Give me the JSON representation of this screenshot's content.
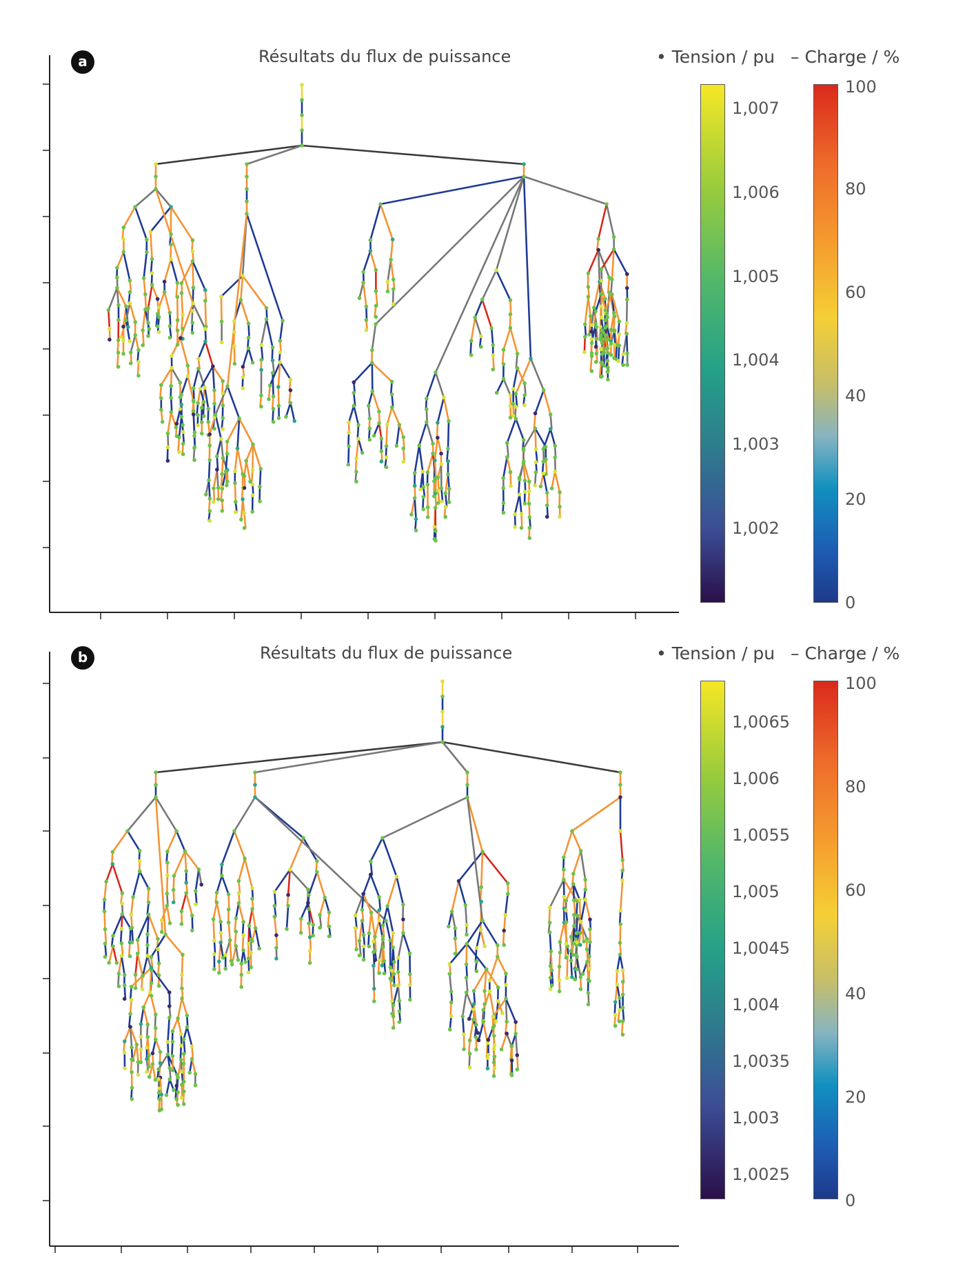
{
  "legend_colors": {
    "voltage_scale": [
      "#2b0f4a",
      "#3b4d96",
      "#2e7c8e",
      "#24a188",
      "#52b76a",
      "#98cc3c",
      "#f6e726"
    ],
    "loading_scale": [
      "#1e3a8a",
      "#1e5cb3",
      "#1190c0",
      "#86b4c0",
      "#c6be6a",
      "#f5cf35",
      "#f59a2e",
      "#ee6a2a",
      "#d92a1c"
    ],
    "line_colors": {
      "dark": "#3a3a3a",
      "gray": "#777777",
      "navy": "#1f3a93",
      "orange": "#f39433",
      "red": "#d6281c",
      "yellow": "#f2d23a"
    },
    "node_colors": {
      "green": "#6cc24a",
      "yellow": "#d7e33a",
      "teal": "#2aa68a",
      "purple": "#3b2a6b"
    }
  },
  "panels": [
    {
      "id": "a",
      "label": "a",
      "title": "Résultats du flux de puissance",
      "voltage_legend": {
        "header": "• Tension / pu",
        "ticks": [
          "1,007",
          "1,006",
          "1,005",
          "1,004",
          "1,003",
          "1,002"
        ]
      },
      "loading_legend": {
        "header": "– Charge / %",
        "ticks": [
          "100",
          "80",
          "60",
          "40",
          "20",
          "0"
        ]
      }
    },
    {
      "id": "b",
      "label": "b",
      "title": "Résultats du flux de puissance",
      "voltage_legend": {
        "header": "• Tension / pu",
        "ticks": [
          "1,0065",
          "1,006",
          "1,0055",
          "1,005",
          "1,0045",
          "1,004",
          "1,0035",
          "1,003",
          "1,0025"
        ]
      },
      "loading_legend": {
        "header": "– Charge / %",
        "ticks": [
          "100",
          "80",
          "60",
          "40",
          "20",
          "0"
        ]
      }
    }
  ]
}
